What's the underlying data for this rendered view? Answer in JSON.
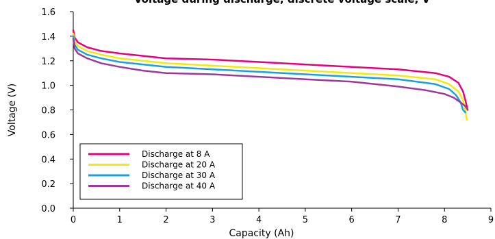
{
  "chart_data": {
    "type": "line",
    "title": "Voltage during discharge, discrete voltage scale, V",
    "xlabel": "Capacity (Ah)",
    "ylabel": "Voltage (V)",
    "xlim": [
      0,
      9
    ],
    "ylim": [
      0.0,
      1.6
    ],
    "x_ticks": [
      "0",
      "1",
      "2",
      "3",
      "4",
      "5",
      "6",
      "7",
      "8",
      "9"
    ],
    "y_ticks": [
      "0.0",
      "0.2",
      "0.4",
      "0.6",
      "0.8",
      "1.0",
      "1.2",
      "1.4",
      "1.6"
    ],
    "grid": false,
    "legend_position": "bottom-left",
    "series": [
      {
        "name": "Discharge at 8 A",
        "color": "#e6007e",
        "x": [
          0.0,
          0.03,
          0.1,
          0.3,
          0.6,
          1.0,
          1.5,
          2.0,
          3.0,
          4.0,
          5.0,
          6.0,
          7.0,
          7.8,
          8.1,
          8.3,
          8.4,
          8.45,
          8.5
        ],
        "y": [
          1.45,
          1.39,
          1.35,
          1.31,
          1.28,
          1.26,
          1.24,
          1.22,
          1.21,
          1.19,
          1.17,
          1.15,
          1.13,
          1.1,
          1.07,
          1.02,
          0.95,
          0.88,
          0.8
        ]
      },
      {
        "name": "Discharge at 20 A",
        "color": "#f2ea0d",
        "x": [
          0.0,
          0.03,
          0.1,
          0.3,
          0.6,
          1.0,
          1.5,
          2.0,
          3.0,
          4.0,
          5.0,
          6.0,
          7.0,
          7.8,
          8.1,
          8.3,
          8.4,
          8.45,
          8.48
        ],
        "y": [
          1.42,
          1.36,
          1.32,
          1.28,
          1.25,
          1.22,
          1.2,
          1.18,
          1.16,
          1.14,
          1.12,
          1.1,
          1.08,
          1.05,
          1.01,
          0.95,
          0.88,
          0.8,
          0.72
        ]
      },
      {
        "name": "Discharge at 30 A",
        "color": "#1aa0e0",
        "x": [
          0.0,
          0.03,
          0.1,
          0.3,
          0.6,
          1.0,
          1.5,
          2.0,
          3.0,
          4.0,
          5.0,
          6.0,
          7.0,
          7.8,
          8.1,
          8.25,
          8.35,
          8.4,
          8.45
        ],
        "y": [
          1.4,
          1.33,
          1.29,
          1.25,
          1.22,
          1.19,
          1.17,
          1.15,
          1.13,
          1.11,
          1.09,
          1.07,
          1.05,
          1.01,
          0.97,
          0.92,
          0.86,
          0.8,
          0.78
        ]
      },
      {
        "name": "Discharge at 40 A",
        "color": "#9b3a9b",
        "x": [
          0.0,
          0.03,
          0.1,
          0.3,
          0.6,
          1.0,
          1.5,
          2.0,
          3.0,
          4.0,
          5.0,
          6.0,
          7.0,
          7.6,
          8.0,
          8.2,
          8.35,
          8.45,
          8.5
        ],
        "y": [
          1.38,
          1.3,
          1.26,
          1.22,
          1.18,
          1.15,
          1.12,
          1.1,
          1.09,
          1.07,
          1.05,
          1.03,
          0.99,
          0.96,
          0.93,
          0.9,
          0.86,
          0.83,
          0.8
        ]
      }
    ]
  }
}
